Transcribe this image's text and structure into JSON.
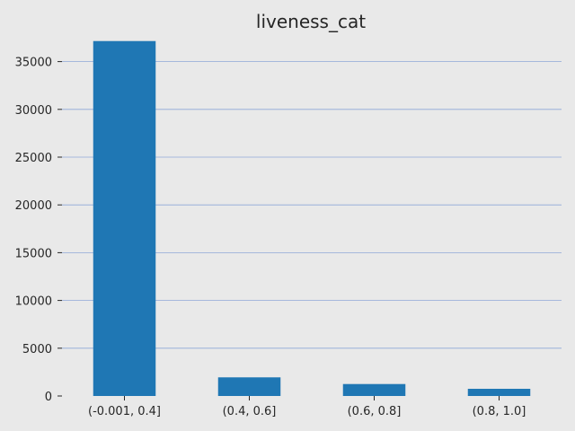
{
  "chart_data": {
    "type": "bar",
    "title": "liveness_cat",
    "xlabel": "",
    "ylabel": "",
    "categories": [
      "(-0.001, 0.4]",
      "(0.4, 0.6]",
      "(0.6, 0.8]",
      "(0.8, 1.0]"
    ],
    "values": [
      37150,
      1950,
      1250,
      750
    ],
    "ylim": [
      0,
      37500
    ],
    "yticks": [
      0,
      5000,
      10000,
      15000,
      20000,
      25000,
      30000,
      35000
    ],
    "grid": "y",
    "legend": "none",
    "colors": {
      "bar": "#1f77b4",
      "grid": "#8fa8d8",
      "background": "#e9e9e9",
      "text": "#262626"
    }
  }
}
